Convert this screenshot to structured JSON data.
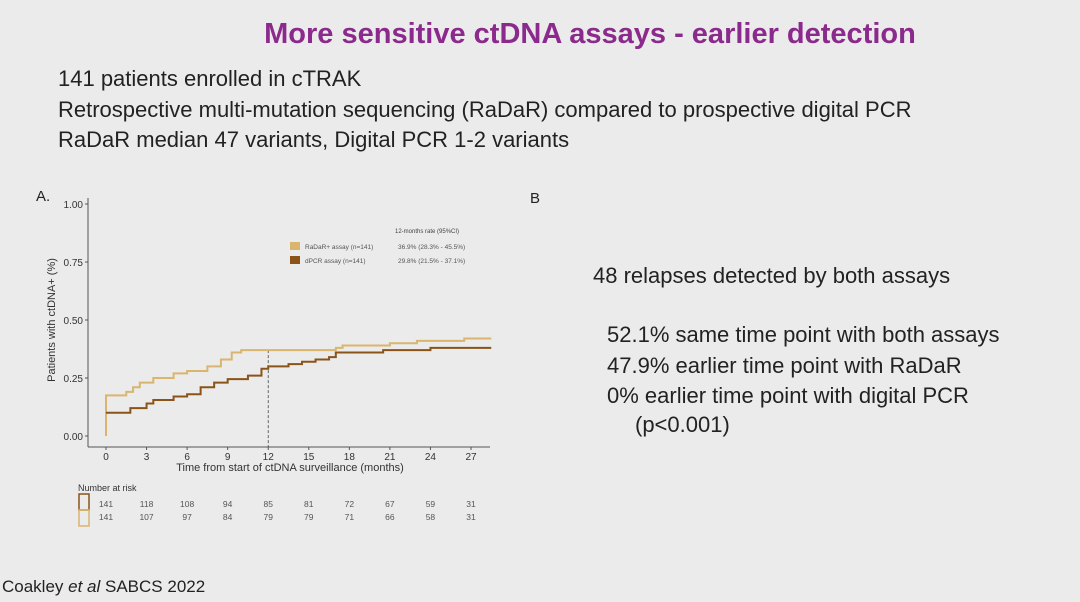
{
  "title": "More sensitive ctDNA assays - earlier detection",
  "intro": [
    "141 patients enrolled in cTRAK",
    "Retrospective multi-mutation sequencing (RaDaR) compared to prospective digital PCR",
    "RaDaR median 47 variants, Digital PCR 1-2 variants"
  ],
  "panel_a": "A.",
  "panel_b": "B",
  "findings": {
    "headline": "48 relapses detected by both assays",
    "items": [
      "52.1% same time point with both assays",
      "47.9% earlier time point with RaDaR",
      "0% earlier time point with digital PCR"
    ],
    "pvalue": "(p<0.001)"
  },
  "citation": {
    "authors": "Coakley ",
    "etal": "et al",
    "rest": " SABCS 2022"
  },
  "chart_data": {
    "type": "line",
    "xlabel": "Time from start of ctDNA surveillance (months)",
    "ylabel": "Patients with ctDNA+ (%)",
    "xlim": [
      0,
      28.5
    ],
    "ylim": [
      0,
      1
    ],
    "xticks": [
      0,
      3,
      6,
      9,
      12,
      15,
      18,
      21,
      24,
      27
    ],
    "yticks": [
      "0.00",
      "0.25",
      "0.50",
      "0.75",
      "1.00"
    ],
    "reference_line_x": 12,
    "legend_header": "12-months rate (95%CI)",
    "series": [
      {
        "name": "RaDaR+ assay (n=141)",
        "rate": "36.9% (28.3% - 45.5%)",
        "color": "#d9b56e",
        "points": [
          [
            0,
            0
          ],
          [
            0,
            0.175
          ],
          [
            1.2,
            0.175
          ],
          [
            1.5,
            0.19
          ],
          [
            2,
            0.21
          ],
          [
            2.5,
            0.23
          ],
          [
            3.5,
            0.25
          ],
          [
            5,
            0.27
          ],
          [
            6,
            0.28
          ],
          [
            7.5,
            0.3
          ],
          [
            8.5,
            0.33
          ],
          [
            9.3,
            0.36
          ],
          [
            10,
            0.37
          ],
          [
            17,
            0.38
          ],
          [
            17.5,
            0.39
          ],
          [
            21,
            0.4
          ],
          [
            23,
            0.41
          ],
          [
            26.5,
            0.42
          ],
          [
            28.5,
            0.42
          ]
        ]
      },
      {
        "name": "dPCR assay (n=141)",
        "rate": "29.8% (21.5% - 37.1%)",
        "color": "#8a5418",
        "points": [
          [
            0,
            0.1
          ],
          [
            1.3,
            0.1
          ],
          [
            1.8,
            0.12
          ],
          [
            3,
            0.14
          ],
          [
            3.5,
            0.155
          ],
          [
            5,
            0.17
          ],
          [
            6,
            0.18
          ],
          [
            7,
            0.21
          ],
          [
            8,
            0.23
          ],
          [
            9,
            0.245
          ],
          [
            10.5,
            0.26
          ],
          [
            11.5,
            0.29
          ],
          [
            12,
            0.3
          ],
          [
            13.5,
            0.31
          ],
          [
            14.5,
            0.32
          ],
          [
            15.5,
            0.33
          ],
          [
            16.5,
            0.34
          ],
          [
            17,
            0.36
          ],
          [
            20.5,
            0.37
          ],
          [
            24,
            0.38
          ],
          [
            28.5,
            0.38
          ]
        ]
      }
    ],
    "risk_table": {
      "title": "Number at risk",
      "rows": [
        {
          "color": "#8a5418",
          "values": [
            "141",
            "118",
            "108",
            "94",
            "85",
            "81",
            "72",
            "67",
            "59",
            "31"
          ]
        },
        {
          "color": "#d9b56e",
          "values": [
            "141",
            "107",
            "97",
            "84",
            "79",
            "79",
            "71",
            "66",
            "58",
            "31"
          ]
        }
      ]
    }
  }
}
